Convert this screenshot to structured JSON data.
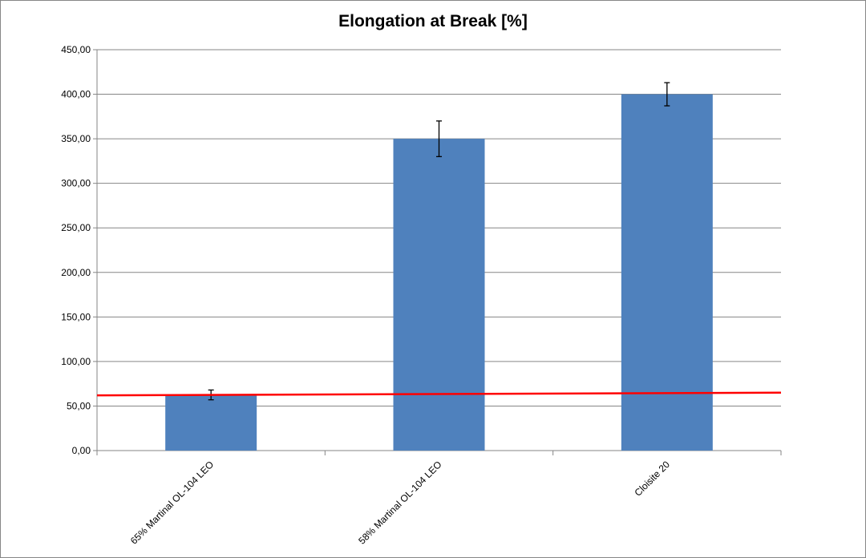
{
  "chart_data": {
    "type": "bar",
    "title": "Elongation at Break [%]",
    "xlabel": "",
    "ylabel": "",
    "categories": [
      "65% Martinal OL-104 LEO",
      "58% Martinal OL-104 LEO",
      "Cloisite 20"
    ],
    "values": [
      62,
      350,
      400
    ],
    "error_bars": [
      {
        "low": 57,
        "high": 68
      },
      {
        "low": 330,
        "high": 370
      },
      {
        "low": 387,
        "high": 413
      }
    ],
    "ylim": [
      0,
      450
    ],
    "ytick_values": [
      0,
      50,
      100,
      150,
      200,
      250,
      300,
      350,
      400,
      450
    ],
    "ytick_labels": [
      "0,00",
      "50,00",
      "100,00",
      "150,00",
      "200,00",
      "250,00",
      "300,00",
      "350,00",
      "400,00",
      "450,00"
    ],
    "reference_line": {
      "start_value": 62,
      "end_value": 65,
      "color": "#ff0000"
    },
    "grid": true,
    "legend": "none",
    "bar_color": "#4f81bd"
  }
}
